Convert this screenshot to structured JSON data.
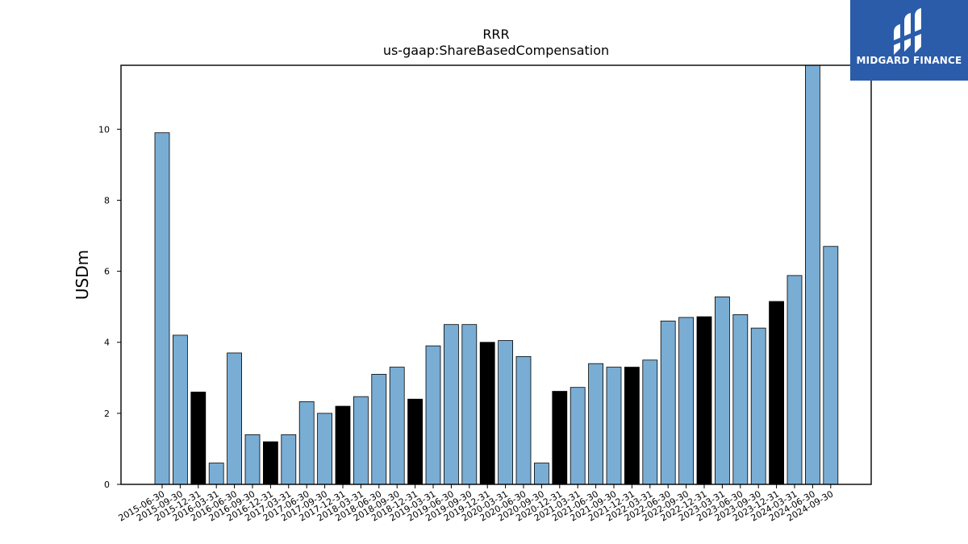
{
  "chart_data": {
    "type": "bar",
    "title": "RRR",
    "subtitle": "us-gaap:ShareBasedCompensation",
    "xlabel": "",
    "ylabel": "USDm",
    "ylim": [
      0,
      11.8
    ],
    "yticks": [
      0,
      2,
      4,
      6,
      8,
      10
    ],
    "grid": false,
    "categories": [
      "2015-06-30",
      "2015-09-30",
      "2015-12-31",
      "2016-03-31",
      "2016-06-30",
      "2016-09-30",
      "2016-12-31",
      "2017-03-31",
      "2017-06-30",
      "2017-09-30",
      "2017-12-31",
      "2018-03-31",
      "2018-06-30",
      "2018-09-30",
      "2018-12-31",
      "2019-03-31",
      "2019-06-30",
      "2019-09-30",
      "2019-12-31",
      "2020-03-31",
      "2020-06-30",
      "2020-09-30",
      "2020-12-31",
      "2021-03-31",
      "2021-06-30",
      "2021-09-30",
      "2021-12-31",
      "2022-03-31",
      "2022-06-30",
      "2022-09-30",
      "2022-12-31",
      "2023-03-31",
      "2023-06-30",
      "2023-09-30",
      "2023-12-31",
      "2024-03-31",
      "2024-06-30",
      "2024-09-30"
    ],
    "values": [
      9.9,
      4.2,
      2.6,
      0.6,
      3.7,
      1.4,
      1.2,
      1.4,
      2.33,
      2.0,
      2.2,
      2.47,
      3.1,
      3.3,
      2.4,
      3.9,
      4.5,
      4.5,
      4.0,
      4.05,
      3.6,
      0.6,
      2.62,
      2.73,
      3.4,
      3.3,
      3.3,
      3.5,
      4.6,
      4.7,
      4.72,
      5.28,
      4.78,
      4.4,
      5.15,
      5.88,
      11.8,
      6.7
    ],
    "highlight_indices": [
      2,
      6,
      10,
      14,
      18,
      22,
      26,
      30,
      34
    ],
    "colors": {
      "bar": "#7aadd4",
      "highlight": "#000000",
      "edge": "#000000"
    }
  },
  "logo": {
    "text": "MIDGARD FINANCE",
    "background": "#2a5caa"
  }
}
